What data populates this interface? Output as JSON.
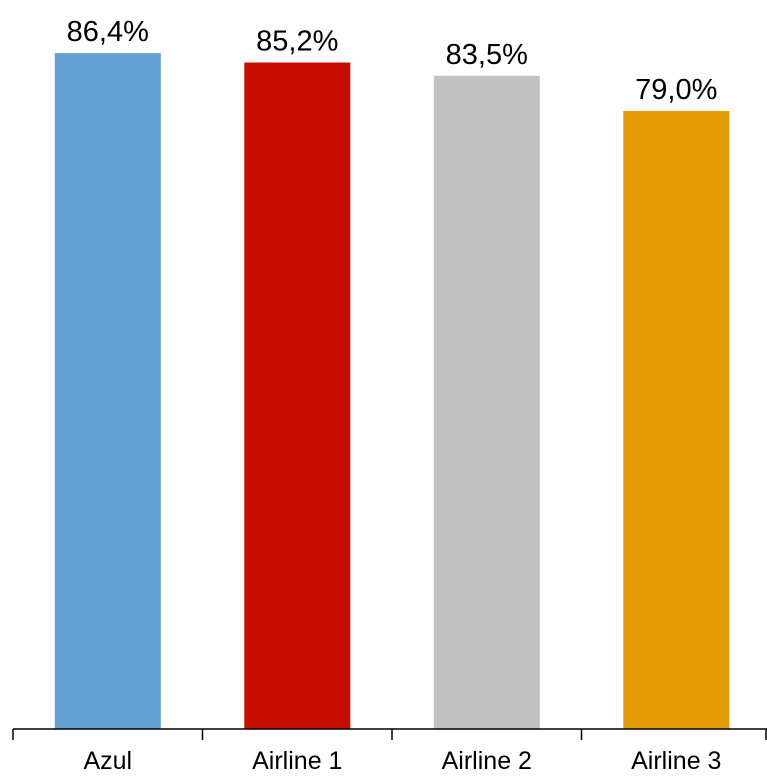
{
  "chart_data": {
    "type": "bar",
    "categories": [
      "Azul",
      "Airline 1",
      "Airline 2",
      "Airline 3"
    ],
    "values": [
      86.4,
      85.2,
      83.5,
      79.0
    ],
    "data_labels": [
      "86,4%",
      "85,2%",
      "83,5%",
      "79,0%"
    ],
    "colors": [
      "#62A0D3",
      "#C80E00",
      "#C2C2C2",
      "#E39B04"
    ],
    "value_axis_visible": false,
    "grid": false,
    "legend": "none"
  }
}
